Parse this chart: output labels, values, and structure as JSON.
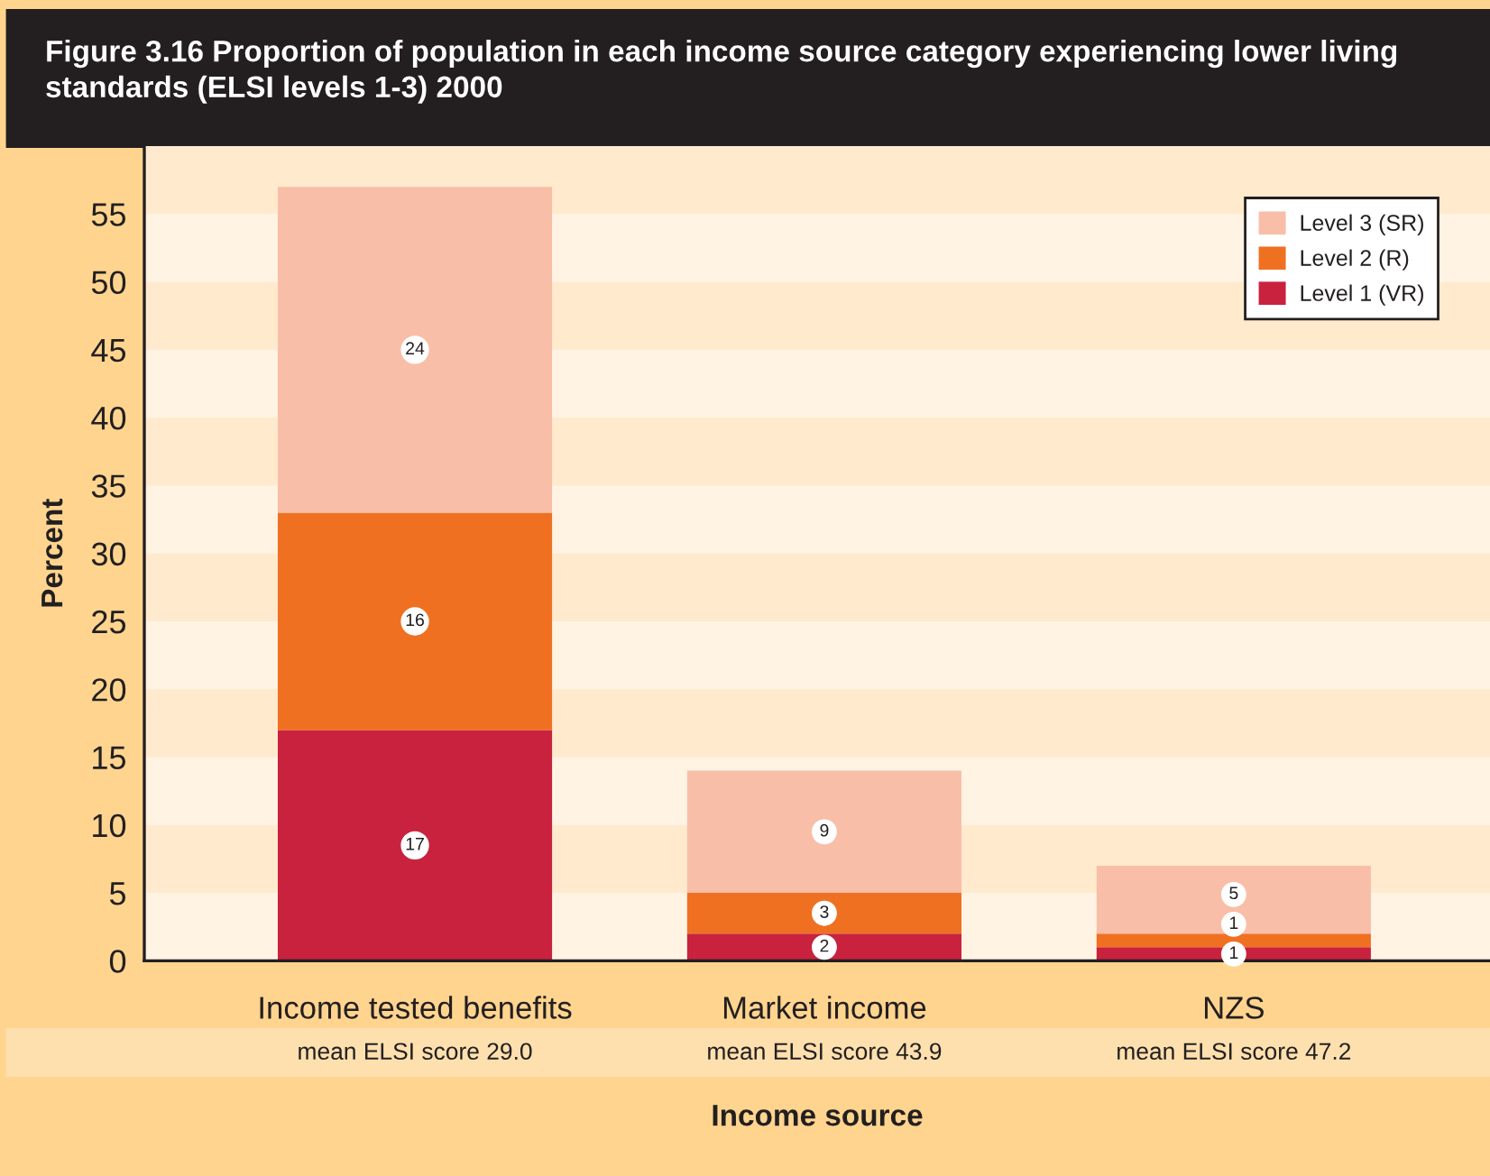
{
  "chart_data": {
    "type": "bar",
    "stacked": true,
    "title": "Figure 3.16 Proportion of population in each income source category experiencing lower living standards (ELSI levels 1-3) 2000",
    "xlabel": "Income source",
    "ylabel": "Percent",
    "categories": [
      "Income tested benefits",
      "Market income",
      "NZS"
    ],
    "series": [
      {
        "name": "Level 1 (VR)",
        "color": "#c8223f",
        "values": [
          17,
          2,
          1
        ]
      },
      {
        "name": "Level 2 (R)",
        "color": "#f07022",
        "values": [
          16,
          3,
          1
        ]
      },
      {
        "name": "Level 3 (SR)",
        "color": "#f9bea7",
        "values": [
          24,
          9,
          5
        ]
      }
    ],
    "ylim": [
      0,
      60
    ],
    "yticks": [
      0,
      5,
      10,
      15,
      20,
      25,
      30,
      35,
      40,
      45,
      50,
      55
    ],
    "bands": [
      {
        "axis": "y",
        "from": 5,
        "to": 10,
        "color": "#ffeacd"
      },
      {
        "axis": "y",
        "from": 15,
        "to": 20,
        "color": "#ffeacd"
      },
      {
        "axis": "y",
        "from": 25,
        "to": 30,
        "color": "#ffeacd"
      },
      {
        "axis": "y",
        "from": 35,
        "to": 40,
        "color": "#ffeacd"
      },
      {
        "axis": "y",
        "from": 45,
        "to": 50,
        "color": "#ffeacd"
      },
      {
        "axis": "y",
        "from": 55,
        "to": 60,
        "color": "#ffeacd"
      }
    ],
    "legend": "top right",
    "data_labels": true,
    "annotations": [
      "mean ELSI score 29.0",
      "mean ELSI score 43.9",
      "mean ELSI score 47.2"
    ]
  }
}
